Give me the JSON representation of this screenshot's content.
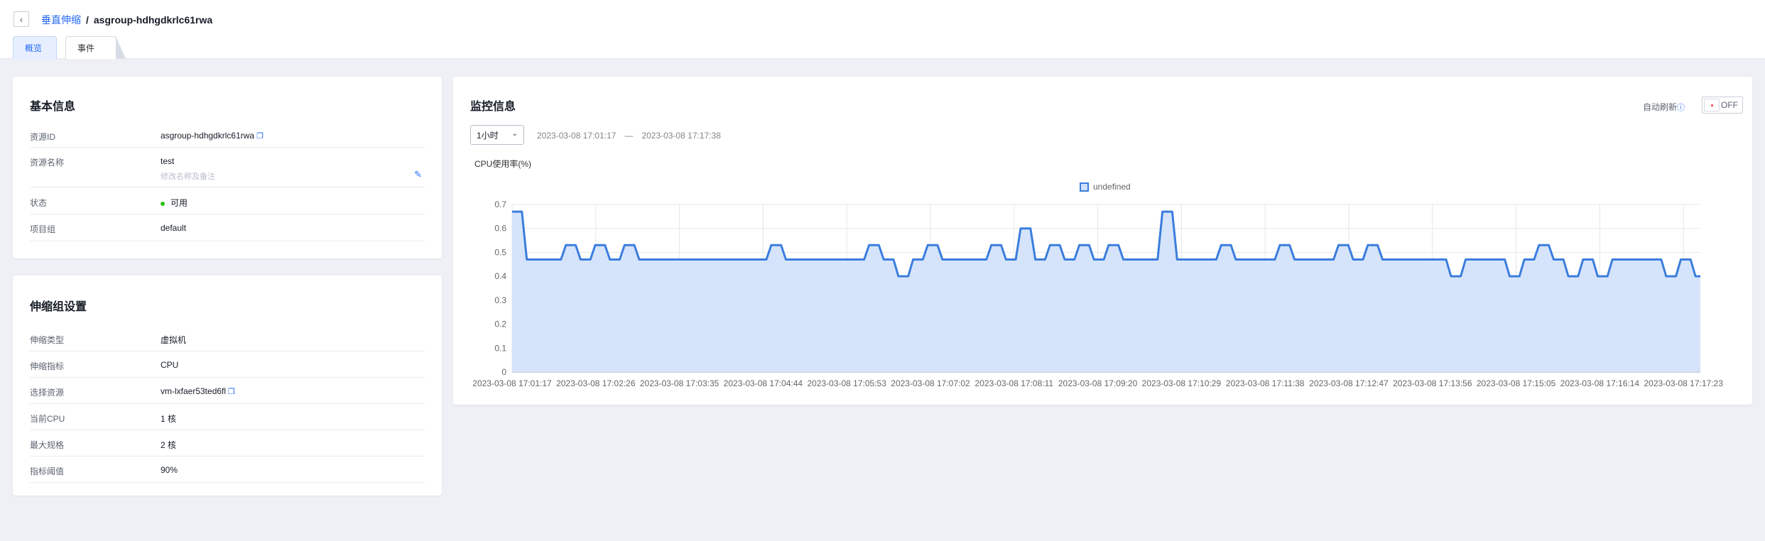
{
  "header": {
    "breadcrumb_parent": "垂直伸缩",
    "breadcrumb_sep": "/",
    "title": "asgroup-hdhgdkrlc61rwa"
  },
  "tabs": [
    {
      "label": "概览",
      "active": true
    },
    {
      "label": "事件",
      "active": false
    }
  ],
  "basic_info": {
    "title": "基本信息",
    "resource_id": {
      "label": "资源ID",
      "value": "asgroup-hdhgdkrlc61rwa"
    },
    "resource_name": {
      "label": "资源名称",
      "value": "test",
      "hint": "修改名称及备注"
    },
    "status": {
      "label": "状态",
      "value": "可用",
      "color": "#30bf13"
    },
    "project_group": {
      "label": "项目组",
      "value": "default"
    }
  },
  "scaling_settings": {
    "title": "伸缩组设置",
    "type": {
      "label": "伸缩类型",
      "value": "虚拟机"
    },
    "metric": {
      "label": "伸缩指标",
      "value": "CPU"
    },
    "resource": {
      "label": "选择资源",
      "value": "vm-lxfaer53ted6fl"
    },
    "current_cpu": {
      "label": "当前CPU",
      "value": "1 核"
    },
    "max_spec": {
      "label": "最大规格",
      "value": "2 核"
    },
    "threshold": {
      "label": "指标阈值",
      "value": "90%"
    }
  },
  "monitor": {
    "title": "监控信息",
    "range_select": "1小时",
    "start_time": "2023-03-08 17:01:17",
    "range_sep": "—",
    "end_time": "2023-03-08 17:17:38",
    "auto_refresh_label": "自动刷新",
    "switch_label": "OFF"
  },
  "colors": {
    "accent": "#2468f2",
    "line": "#3b7ddd",
    "area": "#d3e3fa"
  },
  "chart_data": {
    "type": "area",
    "title": "CPU使用率(%)",
    "legend": [
      "undefined"
    ],
    "legend_position": "top-center",
    "grid": true,
    "ylim": [
      0,
      0.7
    ],
    "y_ticks": [
      "0",
      "0.1",
      "0.2",
      "0.3",
      "0.4",
      "0.5",
      "0.6",
      "0.7"
    ],
    "x_ticks": [
      "2023-03-08 17:01:17",
      "2023-03-08 17:02:26",
      "2023-03-08 17:03:35",
      "2023-03-08 17:04:44",
      "2023-03-08 17:05:53",
      "2023-03-08 17:07:02",
      "2023-03-08 17:08:11",
      "2023-03-08 17:09:20",
      "2023-03-08 17:10:29",
      "2023-03-08 17:11:38",
      "2023-03-08 17:12:47",
      "2023-03-08 17:13:56",
      "2023-03-08 17:15:05",
      "2023-03-08 17:16:14",
      "2023-03-08 17:17:23"
    ],
    "series": [
      {
        "name": "undefined",
        "values": [
          0.67,
          0.67,
          0.67,
          0.47,
          0.47,
          0.47,
          0.47,
          0.47,
          0.47,
          0.47,
          0.47,
          0.53,
          0.53,
          0.53,
          0.47,
          0.47,
          0.47,
          0.53,
          0.53,
          0.53,
          0.47,
          0.47,
          0.47,
          0.53,
          0.53,
          0.53,
          0.47,
          0.47,
          0.47,
          0.47,
          0.47,
          0.47,
          0.47,
          0.47,
          0.47,
          0.47,
          0.47,
          0.47,
          0.47,
          0.47,
          0.47,
          0.47,
          0.47,
          0.47,
          0.47,
          0.47,
          0.47,
          0.47,
          0.47,
          0.47,
          0.47,
          0.47,
          0.47,
          0.53,
          0.53,
          0.53,
          0.47,
          0.47,
          0.47,
          0.47,
          0.47,
          0.47,
          0.47,
          0.47,
          0.47,
          0.47,
          0.47,
          0.47,
          0.47,
          0.47,
          0.47,
          0.47,
          0.47,
          0.53,
          0.53,
          0.53,
          0.47,
          0.47,
          0.47,
          0.4,
          0.4,
          0.4,
          0.47,
          0.47,
          0.47,
          0.53,
          0.53,
          0.53,
          0.47,
          0.47,
          0.47,
          0.47,
          0.47,
          0.47,
          0.47,
          0.47,
          0.47,
          0.47,
          0.53,
          0.53,
          0.53,
          0.47,
          0.47,
          0.47,
          0.6,
          0.6,
          0.6,
          0.47,
          0.47,
          0.47,
          0.53,
          0.53,
          0.53,
          0.47,
          0.47,
          0.47,
          0.53,
          0.53,
          0.53,
          0.47,
          0.47,
          0.47,
          0.53,
          0.53,
          0.53,
          0.47,
          0.47,
          0.47,
          0.47,
          0.47,
          0.47,
          0.47,
          0.47,
          0.67,
          0.67,
          0.67,
          0.47,
          0.47,
          0.47,
          0.47,
          0.47,
          0.47,
          0.47,
          0.47,
          0.47,
          0.53,
          0.53,
          0.53,
          0.47,
          0.47,
          0.47,
          0.47,
          0.47,
          0.47,
          0.47,
          0.47,
          0.47,
          0.53,
          0.53,
          0.53,
          0.47,
          0.47,
          0.47,
          0.47,
          0.47,
          0.47,
          0.47,
          0.47,
          0.47,
          0.53,
          0.53,
          0.53,
          0.47,
          0.47,
          0.47,
          0.53,
          0.53,
          0.53,
          0.47,
          0.47,
          0.47,
          0.47,
          0.47,
          0.47,
          0.47,
          0.47,
          0.47,
          0.47,
          0.47,
          0.47,
          0.47,
          0.47,
          0.4,
          0.4,
          0.4,
          0.47,
          0.47,
          0.47,
          0.47,
          0.47,
          0.47,
          0.47,
          0.47,
          0.47,
          0.4,
          0.4,
          0.4,
          0.47,
          0.47,
          0.47,
          0.53,
          0.53,
          0.53,
          0.47,
          0.47,
          0.47,
          0.4,
          0.4,
          0.4,
          0.47,
          0.47,
          0.47,
          0.4,
          0.4,
          0.4,
          0.47,
          0.47,
          0.47,
          0.47,
          0.47,
          0.47,
          0.47,
          0.47,
          0.47,
          0.47,
          0.47,
          0.4,
          0.4,
          0.4,
          0.47,
          0.47,
          0.47,
          0.4,
          0.4
        ]
      }
    ]
  }
}
